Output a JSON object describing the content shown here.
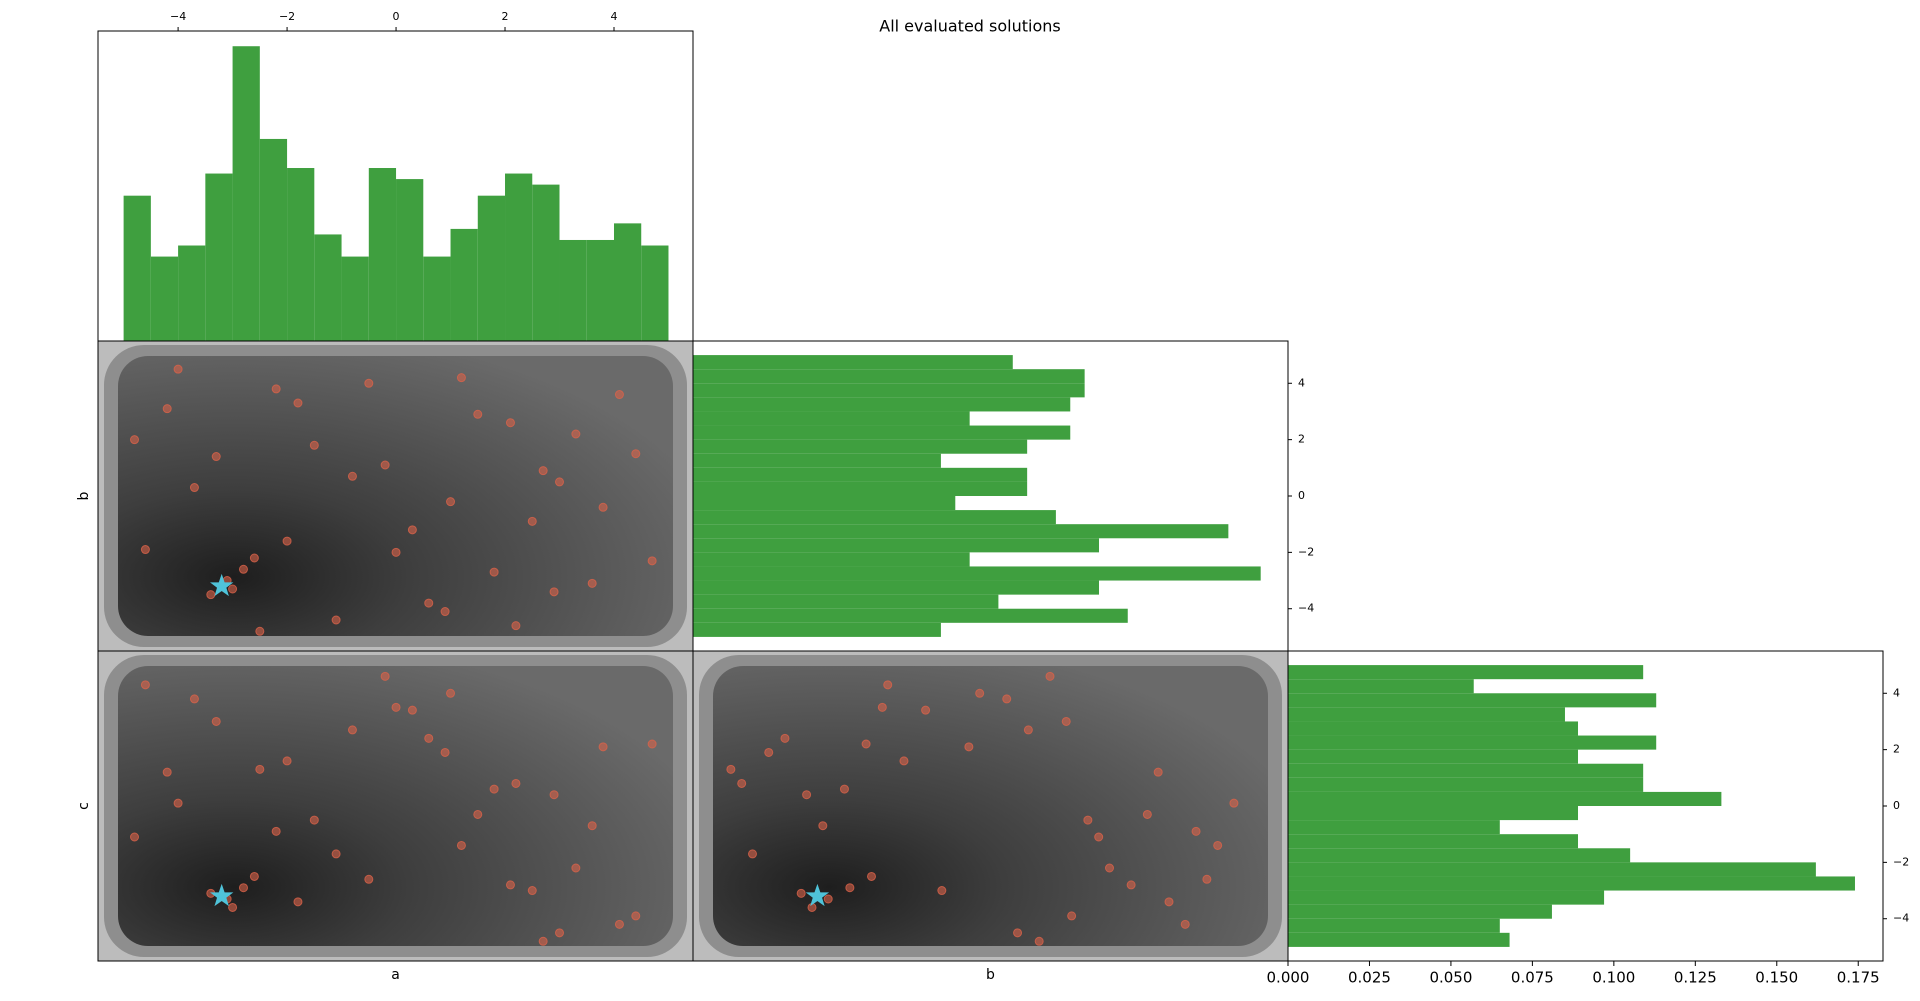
{
  "title": "All evaluated solutions",
  "chart_data": [
    {
      "type": "histogram",
      "orientation": "vertical",
      "color": "#3f9f3f",
      "bins": [
        -5,
        -4.5,
        -4,
        -3.5,
        -3,
        -2.5,
        -2,
        -1.5,
        -1,
        -0.5,
        0,
        0.5,
        1,
        1.5,
        2,
        2.5,
        3,
        3.5,
        4,
        4.5,
        5
      ],
      "values": [
        0.105,
        0.061,
        0.069,
        0.121,
        0.213,
        0.146,
        0.125,
        0.077,
        0.061,
        0.125,
        0.117,
        0.061,
        0.081,
        0.105,
        0.121,
        0.113,
        0.073,
        0.073,
        0.085,
        0.069
      ],
      "xlim": [
        -5.47,
        5.45
      ],
      "ylim": [
        0,
        0.224
      ],
      "xaxis_position": "top",
      "xticks": [
        {
          "value": -4,
          "label": "−4"
        },
        {
          "value": -2,
          "label": "−2"
        },
        0,
        2,
        4
      ]
    },
    {
      "type": "histogram",
      "orientation": "horizontal",
      "color": "#3f9f3f",
      "bins": [
        -5,
        -4.5,
        -4,
        -3.5,
        -3,
        -2.5,
        -2,
        -1.5,
        -1,
        -0.5,
        0,
        0.5,
        1,
        1.5,
        2,
        2.5,
        3,
        3.5,
        4,
        4.5,
        5
      ],
      "values": [
        0.069,
        0.121,
        0.085,
        0.113,
        0.158,
        0.077,
        0.113,
        0.149,
        0.101,
        0.073,
        0.093,
        0.093,
        0.069,
        0.093,
        0.105,
        0.077,
        0.105,
        0.109,
        0.109,
        0.089
      ],
      "xlim": [
        0,
        0.1656
      ],
      "ylim": [
        -5.5,
        5.5
      ],
      "yaxis_position": "right",
      "yticks": [
        {
          "value": -4,
          "label": "−4"
        },
        {
          "value": -2,
          "label": "−2"
        },
        0,
        2,
        4
      ]
    },
    {
      "type": "histogram",
      "orientation": "horizontal",
      "color": "#3f9f3f",
      "bins": [
        -5,
        -4.5,
        -4,
        -3.5,
        -3,
        -2.5,
        -2,
        -1.5,
        -1,
        -0.5,
        0,
        0.5,
        1,
        1.5,
        2,
        2.5,
        3,
        3.5,
        4,
        4.5,
        5
      ],
      "values": [
        0.068,
        0.065,
        0.081,
        0.097,
        0.174,
        0.162,
        0.105,
        0.089,
        0.065,
        0.089,
        0.133,
        0.109,
        0.109,
        0.089,
        0.113,
        0.089,
        0.085,
        0.113,
        0.057,
        0.109
      ],
      "xlim": [
        0,
        0.1826
      ],
      "ylim": [
        -5.5,
        5.5
      ],
      "yaxis_position": "right",
      "yticks": [
        {
          "value": -4,
          "label": "−4"
        },
        {
          "value": -2,
          "label": "−2"
        },
        0,
        2,
        4
      ],
      "xticks": [
        {
          "value": 0,
          "label": "0.000"
        },
        {
          "value": 0.025,
          "label": "0.025"
        },
        {
          "value": 0.05,
          "label": "0.050"
        },
        {
          "value": 0.075,
          "label": "0.075"
        },
        {
          "value": 0.1,
          "label": "0.100"
        },
        {
          "value": 0.125,
          "label": "0.125"
        },
        {
          "value": 0.15,
          "label": "0.150"
        },
        {
          "value": 0.175,
          "label": "0.175"
        }
      ]
    },
    {
      "type": "scatter",
      "ylabel": "b",
      "color": "#d9634a",
      "best_color": "#4fc3d9",
      "xlim": [
        -5.47,
        5.45
      ],
      "ylim": [
        -5.5,
        5.5
      ],
      "best": {
        "x": -3.2,
        "y": -3.2
      },
      "x": [
        -3.1,
        -2.8,
        -3.4,
        -2.6,
        -3.0,
        -4.2,
        -1.5,
        0.3,
        2.1,
        3.8,
        -4.6,
        1.2,
        -0.8,
        2.9,
        4.4,
        -2.2,
        0.9,
        3.3,
        -3.7,
        1.8,
        -1.1,
        4.1,
        -0.2,
        2.5,
        -4.0,
        0.6,
        3.0,
        -2.0,
        1.5,
        -3.3,
        4.7,
        -0.5,
        2.2,
        -4.8,
        1.0,
        3.6,
        -1.8,
        0.0,
        2.7,
        -2.5
      ],
      "y": [
        -3.0,
        -2.6,
        -3.5,
        -2.2,
        -3.3,
        3.1,
        1.8,
        -1.2,
        2.6,
        -0.4,
        -1.9,
        4.2,
        0.7,
        -3.4,
        1.5,
        3.8,
        -4.1,
        2.2,
        0.3,
        -2.7,
        -4.4,
        3.6,
        1.1,
        -0.9,
        4.5,
        -3.8,
        0.5,
        -1.6,
        2.9,
        1.4,
        -2.3,
        4.0,
        -4.6,
        2.0,
        -0.2,
        -3.1,
        3.3,
        -2.0,
        0.9,
        -4.8
      ]
    },
    {
      "type": "scatter",
      "xlabel": "a",
      "ylabel": "c",
      "color": "#d9634a",
      "best_color": "#4fc3d9",
      "xlim": [
        -5.47,
        5.45
      ],
      "ylim": [
        -5.5,
        5.5
      ],
      "best": {
        "x": -3.2,
        "y": -3.2
      },
      "x": [
        -3.1,
        -2.8,
        -3.4,
        -2.6,
        -3.0,
        -4.2,
        -1.5,
        0.3,
        2.1,
        3.8,
        -4.6,
        1.2,
        -0.8,
        2.9,
        4.4,
        -2.2,
        0.9,
        3.3,
        -3.7,
        1.8,
        -1.1,
        4.1,
        -0.2,
        2.5,
        -4.0,
        0.6,
        3.0,
        -2.0,
        1.5,
        -3.3,
        4.7,
        -0.5,
        2.2,
        -4.8,
        1.0,
        3.6,
        -1.8,
        0.0,
        2.7,
        -2.5
      ],
      "y": [
        -3.3,
        -2.9,
        -3.1,
        -2.5,
        -3.6,
        1.2,
        -0.5,
        3.4,
        -2.8,
        2.1,
        4.3,
        -1.4,
        2.7,
        0.4,
        -3.9,
        -0.9,
        1.9,
        -2.2,
        3.8,
        0.6,
        -1.7,
        -4.2,
        4.6,
        -3.0,
        0.1,
        2.4,
        -4.5,
        1.6,
        -0.3,
        3.0,
        2.2,
        -2.6,
        0.8,
        -1.1,
        4.0,
        -0.7,
        -3.4,
        3.5,
        -4.8,
        1.3
      ]
    },
    {
      "type": "scatter",
      "xlabel": "b",
      "color": "#d9634a",
      "best_color": "#4fc3d9",
      "xlim": [
        -5.5,
        5.5
      ],
      "ylim": [
        -5.5,
        5.5
      ],
      "best": {
        "x": -3.2,
        "y": -3.2
      },
      "x": [
        -3.0,
        -2.6,
        -3.5,
        -2.2,
        -3.3,
        3.1,
        1.8,
        -1.2,
        2.6,
        -0.4,
        -1.9,
        4.2,
        0.7,
        -3.4,
        1.5,
        3.8,
        -4.1,
        2.2,
        0.3,
        -2.7,
        -4.4,
        3.6,
        1.1,
        -0.9,
        4.5,
        -3.8,
        0.5,
        -1.6,
        2.9,
        1.4,
        -2.3,
        4.0,
        -4.6,
        2.0,
        -0.2,
        -3.1,
        3.3,
        -2.0,
        0.9,
        -4.8
      ],
      "y": [
        -3.3,
        -2.9,
        -3.1,
        -2.5,
        -3.6,
        1.2,
        -0.5,
        3.4,
        -2.8,
        2.1,
        4.3,
        -1.4,
        2.7,
        0.4,
        -3.9,
        -0.9,
        1.9,
        -2.2,
        3.8,
        0.6,
        -1.7,
        -4.2,
        4.6,
        -3.0,
        0.1,
        2.4,
        -4.5,
        1.6,
        -0.3,
        3.0,
        2.2,
        -2.6,
        0.8,
        -1.1,
        4.0,
        -0.7,
        -3.4,
        3.5,
        -4.8,
        1.3
      ]
    }
  ]
}
